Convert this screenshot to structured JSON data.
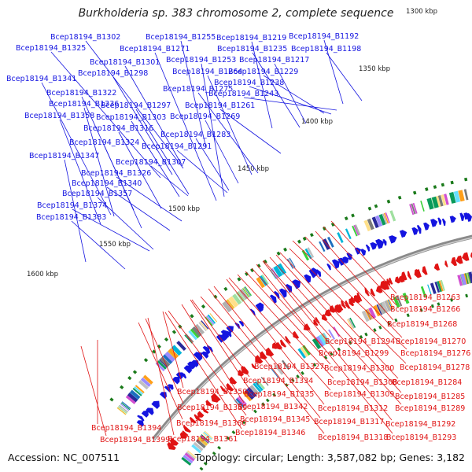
{
  "header": {
    "title": "Burkholderia sp. 383 chromosome 2, complete sequence"
  },
  "footer": {
    "accession": "Accession: NC_007511",
    "topology": "Topology: circular; Length: 3,587,082 bp; Genes: 3,182"
  },
  "colors": {
    "forward": "#1414e0",
    "reverse": "#e01414",
    "backbone": "#8a8a8a",
    "tick_mark": "#1a7a1a"
  },
  "scale_ticks": [
    "1300 kbp",
    "1350 kbp",
    "1400 kbp",
    "1450 kbp",
    "1500 kbp",
    "1550 kbp",
    "1600 kbp"
  ],
  "forward_gene_labels": [
    "Bcep18194_B1302",
    "Bcep18194_B1255",
    "Bcep18194_B1219",
    "Bcep18194_B1192",
    "Bcep18194_B1325",
    "Bcep18194_B1271",
    "Bcep18194_B1235",
    "Bcep18194_B1198",
    "Bcep18194_B1301",
    "Bcep18194_B1253",
    "Bcep18194_B1217",
    "Bcep18194_B1341",
    "Bcep18194_B1298",
    "Bcep18194_B1264",
    "Bcep18194_B1229",
    "Bcep18194_B1238",
    "Bcep18194_B1322",
    "Bcep18194_B1275",
    "Bcep18194_B1243",
    "Bcep18194_B1336",
    "Bcep18194_B1297",
    "Bcep18194_B1261",
    "Bcep18194_B1358",
    "Bcep18194_B1303",
    "Bcep18194_B1269",
    "Bcep18194_B1316",
    "Bcep18194_B1283",
    "Bcep18194_B1324",
    "Bcep18194_B1291",
    "Bcep18194_B1347",
    "Bcep18194_B1307",
    "Bcep18194_B1326",
    "Bcep18194_B1340",
    "Bcep18194_B1357",
    "Bcep18194_B1374",
    "Bcep18194_B1383"
  ],
  "reverse_gene_labels": [
    "Bcep18194_B1263",
    "Bcep18194_B1266",
    "Bcep18194_B1268",
    "Bcep18194_B1294",
    "Bcep18194_B1270",
    "Bcep18194_B1299",
    "Bcep18194_B1276",
    "Bcep18194_B1327",
    "Bcep18194_B1300",
    "Bcep18194_B1278",
    "Bcep18194_B1334",
    "Bcep18194_B1308",
    "Bcep18194_B1284",
    "Bcep18194_B1350",
    "Bcep18194_B1335",
    "Bcep18194_B1309",
    "Bcep18194_B1285",
    "Bcep18194_B1359",
    "Bcep18194_B1342",
    "Bcep18194_B1312",
    "Bcep18194_B1289",
    "Bcep18194_B1360",
    "Bcep18194_B1345",
    "Bcep18194_B1317",
    "Bcep18194_B1292",
    "Bcep18194_B1394",
    "Bcep18194_B1346",
    "Bcep18194_B1318",
    "Bcep18194_B1293",
    "Bcep18194_B1399",
    "Bcep18194_B1361"
  ]
}
